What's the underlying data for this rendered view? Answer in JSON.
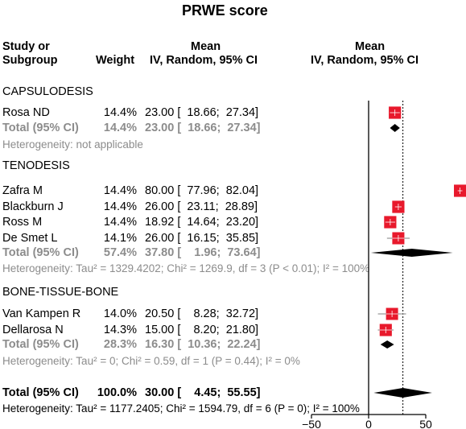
{
  "title": "PRWE score",
  "header": {
    "study_line1": "Study or",
    "study_line2": "Subgroup",
    "weight": "Weight",
    "mean_line1": "Mean",
    "mean_line2": "IV, Random, 95% CI",
    "plot_mean_line1": "Mean",
    "plot_mean_line2": "IV, Random, 95% CI"
  },
  "groups": [
    {
      "name": "CAPSULODESIS",
      "studies": [
        {
          "study": "Rosa ND",
          "weight": "14.4%",
          "ci_text": "23.00 [  18.66;  27.34]"
        }
      ],
      "total": {
        "label": "Total (95% CI)",
        "weight": "14.4%",
        "ci_text": "23.00 [  18.66;  27.34]"
      },
      "heterogeneity": "Heterogeneity: not applicable"
    },
    {
      "name": "TENODESIS",
      "studies": [
        {
          "study": "Zafra M",
          "weight": "14.4%",
          "ci_text": "80.00 [  77.96;  82.04]"
        },
        {
          "study": "Blackburn J",
          "weight": "14.4%",
          "ci_text": "26.00 [  23.11;  28.89]"
        },
        {
          "study": "Ross M",
          "weight": "14.4%",
          "ci_text": "18.92 [  14.64;  23.20]"
        },
        {
          "study": "De Smet L",
          "weight": "14.1%",
          "ci_text": "26.00 [  16.15;  35.85]"
        }
      ],
      "total": {
        "label": "Total (95% CI)",
        "weight": "57.4%",
        "ci_text": "37.80 [    1.96;  73.64]"
      },
      "heterogeneity": "Heterogeneity: Tau² = 1329.4202; Chi² = 1269.9, df = 3 (P < 0.01); I² = 100%"
    },
    {
      "name": "BONE-TISSUE-BONE",
      "studies": [
        {
          "study": "Van Kampen R",
          "weight": "14.0%",
          "ci_text": "20.50 [    8.28;  32.72]"
        },
        {
          "study": "Dellarosa N",
          "weight": "14.3%",
          "ci_text": "15.00 [    8.20;  21.80]"
        }
      ],
      "total": {
        "label": "Total (95% CI)",
        "weight": "28.3%",
        "ci_text": "16.30 [  10.36;  22.24]"
      },
      "heterogeneity": "Heterogeneity: Tau² = 0; Chi² = 0.59, df = 1 (P = 0.44); I² = 0%"
    }
  ],
  "overall": {
    "label": "Total (95% CI)",
    "weight": "100.0%",
    "ci_text": "30.00 [    4.45;  55.55]",
    "heterogeneity": "Heterogeneity: Tau² = 1177.2405; Chi² = 1594.79, df = 6 (P = 0); I² = 100%"
  },
  "colors": {
    "box": "#e8192c",
    "total_text": "#8c8c8c",
    "diamond": "#000000"
  },
  "chart_data": {
    "type": "forest",
    "title": "PRWE score",
    "xlim": [
      -50,
      50
    ],
    "x_ticks": [
      -50,
      0,
      50
    ],
    "x_tick_labels": [
      "−50",
      "0",
      "50"
    ],
    "null_line": 0,
    "overall_line": 30.0,
    "studies": [
      {
        "group": "CAPSULODESIS",
        "study": "Rosa ND",
        "weight": 14.4,
        "mean": 23.0,
        "lower": 18.66,
        "upper": 27.34
      },
      {
        "group": "TENODESIS",
        "study": "Zafra M",
        "weight": 14.4,
        "mean": 80.0,
        "lower": 77.96,
        "upper": 82.04
      },
      {
        "group": "TENODESIS",
        "study": "Blackburn J",
        "weight": 14.4,
        "mean": 26.0,
        "lower": 23.11,
        "upper": 28.89
      },
      {
        "group": "TENODESIS",
        "study": "Ross M",
        "weight": 14.4,
        "mean": 18.92,
        "lower": 14.64,
        "upper": 23.2
      },
      {
        "group": "TENODESIS",
        "study": "De Smet L",
        "weight": 14.1,
        "mean": 26.0,
        "lower": 16.15,
        "upper": 35.85
      },
      {
        "group": "BONE-TISSUE-BONE",
        "study": "Van Kampen R",
        "weight": 14.0,
        "mean": 20.5,
        "lower": 8.28,
        "upper": 32.72
      },
      {
        "group": "BONE-TISSUE-BONE",
        "study": "Dellarosa N",
        "weight": 14.3,
        "mean": 15.0,
        "lower": 8.2,
        "upper": 21.8
      }
    ],
    "subgroup_totals": [
      {
        "group": "CAPSULODESIS",
        "weight": 14.4,
        "mean": 23.0,
        "lower": 18.66,
        "upper": 27.34
      },
      {
        "group": "TENODESIS",
        "weight": 57.4,
        "mean": 37.8,
        "lower": 1.96,
        "upper": 73.64
      },
      {
        "group": "BONE-TISSUE-BONE",
        "weight": 28.3,
        "mean": 16.3,
        "lower": 10.36,
        "upper": 22.24
      }
    ],
    "overall": {
      "weight": 100.0,
      "mean": 30.0,
      "lower": 4.45,
      "upper": 55.55
    }
  }
}
